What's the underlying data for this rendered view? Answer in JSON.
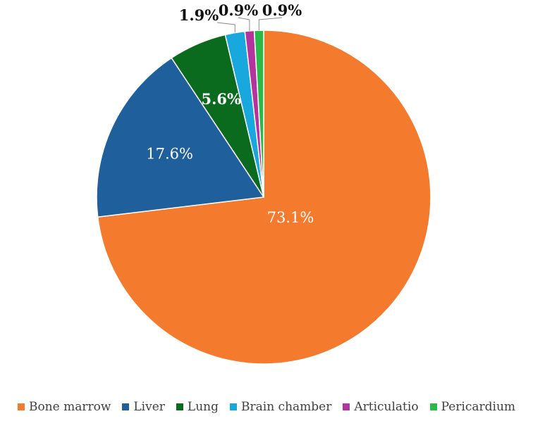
{
  "chart_data": {
    "type": "pie",
    "title": "",
    "legend_position": "bottom",
    "categories": [
      "Bone marrow",
      "Liver",
      "Lung",
      "Brain chamber",
      "Articulatio",
      "Pericardium"
    ],
    "values": [
      73.1,
      17.6,
      5.6,
      1.9,
      0.9,
      0.9
    ],
    "labels": [
      "73.1%",
      "17.6%",
      "5.6%",
      "1.9%",
      "0.9%",
      "0.9%"
    ],
    "colors": [
      "#f47a2e",
      "#1f5f9b",
      "#0a6b1f",
      "#19a8dd",
      "#b5339e",
      "#2db84a"
    ],
    "start_angle_deg": 0,
    "direction": "clockwise"
  }
}
